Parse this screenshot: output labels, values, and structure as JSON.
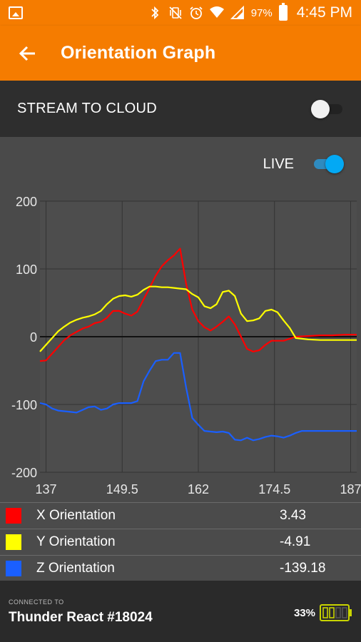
{
  "status_bar": {
    "battery_percent": "97%",
    "time": "4:45 PM",
    "icons": [
      "gallery-icon",
      "bluetooth-icon",
      "vibrate-mute-icon",
      "alarm-icon",
      "wifi-icon",
      "signal-icon",
      "battery-icon"
    ]
  },
  "app_bar": {
    "title": "Orientation Graph",
    "back_icon": "arrow-left-icon"
  },
  "stream": {
    "label": "STREAM TO CLOUD",
    "enabled": false
  },
  "live": {
    "label": "LIVE",
    "enabled": true
  },
  "colors": {
    "accent": "#f57c00",
    "x": "#ff0000",
    "y": "#ffff00",
    "z": "#1a5fff",
    "toggle_on": "#03a9f4"
  },
  "chart_data": {
    "type": "line",
    "title": "",
    "xlabel": "",
    "ylabel": "",
    "xlim": [
      136,
      188
    ],
    "ylim": [
      -200,
      200
    ],
    "x_ticks": [
      "137",
      "149.5",
      "162",
      "174.5",
      "187"
    ],
    "x_tick_values": [
      137,
      149.5,
      162,
      174.5,
      187
    ],
    "y_ticks": [
      "200",
      "100",
      "0",
      "-100",
      "-200"
    ],
    "y_tick_values": [
      200,
      100,
      0,
      -100,
      -200
    ],
    "grid": true,
    "series": [
      {
        "key": "x",
        "color": "#ff0000",
        "points": [
          [
            136,
            -36
          ],
          [
            137,
            -35
          ],
          [
            138,
            -25
          ],
          [
            139,
            -15
          ],
          [
            140,
            -5
          ],
          [
            141,
            2
          ],
          [
            142,
            7
          ],
          [
            143,
            12
          ],
          [
            144,
            15
          ],
          [
            145,
            20
          ],
          [
            146,
            22
          ],
          [
            147,
            28
          ],
          [
            148,
            38
          ],
          [
            149,
            38
          ],
          [
            150,
            34
          ],
          [
            151,
            31
          ],
          [
            152,
            37
          ],
          [
            153,
            55
          ],
          [
            154,
            72
          ],
          [
            155,
            90
          ],
          [
            156,
            104
          ],
          [
            157,
            113
          ],
          [
            158,
            120
          ],
          [
            159,
            130
          ],
          [
            160,
            78
          ],
          [
            161,
            40
          ],
          [
            162,
            23
          ],
          [
            163,
            14
          ],
          [
            164,
            9
          ],
          [
            165,
            15
          ],
          [
            166,
            22
          ],
          [
            167,
            30
          ],
          [
            168,
            18
          ],
          [
            169,
            0
          ],
          [
            170,
            -18
          ],
          [
            171,
            -22
          ],
          [
            172,
            -20
          ],
          [
            173,
            -12
          ],
          [
            174,
            -6
          ],
          [
            175,
            -6
          ],
          [
            176,
            -6
          ],
          [
            177,
            -3
          ],
          [
            178,
            0
          ],
          [
            180,
            1
          ],
          [
            182,
            2
          ],
          [
            184,
            2
          ],
          [
            186,
            3
          ],
          [
            188,
            3
          ]
        ]
      },
      {
        "key": "y",
        "color": "#ffff00",
        "points": [
          [
            136,
            -22
          ],
          [
            137,
            -12
          ],
          [
            138,
            -2
          ],
          [
            139,
            8
          ],
          [
            140,
            15
          ],
          [
            141,
            21
          ],
          [
            142,
            25
          ],
          [
            143,
            28
          ],
          [
            144,
            30
          ],
          [
            145,
            33
          ],
          [
            146,
            38
          ],
          [
            147,
            48
          ],
          [
            148,
            56
          ],
          [
            149,
            60
          ],
          [
            150,
            61
          ],
          [
            151,
            59
          ],
          [
            152,
            62
          ],
          [
            153,
            69
          ],
          [
            154,
            74
          ],
          [
            155,
            74
          ],
          [
            156,
            73
          ],
          [
            157,
            73
          ],
          [
            158,
            72
          ],
          [
            159,
            71
          ],
          [
            160,
            70
          ],
          [
            161,
            63
          ],
          [
            162,
            58
          ],
          [
            163,
            45
          ],
          [
            164,
            42
          ],
          [
            165,
            48
          ],
          [
            166,
            66
          ],
          [
            167,
            68
          ],
          [
            168,
            60
          ],
          [
            169,
            34
          ],
          [
            170,
            23
          ],
          [
            171,
            24
          ],
          [
            172,
            27
          ],
          [
            173,
            38
          ],
          [
            174,
            40
          ],
          [
            175,
            36
          ],
          [
            176,
            24
          ],
          [
            177,
            13
          ],
          [
            178,
            -2
          ],
          [
            180,
            -4
          ],
          [
            182,
            -5
          ],
          [
            184,
            -5
          ],
          [
            186,
            -5
          ],
          [
            188,
            -5
          ]
        ]
      },
      {
        "key": "z",
        "color": "#1a5fff",
        "points": [
          [
            136,
            -98
          ],
          [
            137,
            -100
          ],
          [
            138,
            -106
          ],
          [
            139,
            -109
          ],
          [
            140,
            -110
          ],
          [
            141,
            -111
          ],
          [
            142,
            -112
          ],
          [
            143,
            -108
          ],
          [
            144,
            -104
          ],
          [
            145,
            -103
          ],
          [
            146,
            -108
          ],
          [
            147,
            -106
          ],
          [
            148,
            -100
          ],
          [
            149,
            -98
          ],
          [
            150,
            -98
          ],
          [
            151,
            -98
          ],
          [
            152,
            -95
          ],
          [
            153,
            -66
          ],
          [
            154,
            -50
          ],
          [
            155,
            -36
          ],
          [
            156,
            -34
          ],
          [
            157,
            -34
          ],
          [
            158,
            -24
          ],
          [
            159,
            -24
          ],
          [
            160,
            -75
          ],
          [
            161,
            -120
          ],
          [
            162,
            -130
          ],
          [
            163,
            -139
          ],
          [
            164,
            -140
          ],
          [
            165,
            -141
          ],
          [
            166,
            -140
          ],
          [
            167,
            -142
          ],
          [
            168,
            -152
          ],
          [
            169,
            -153
          ],
          [
            170,
            -149
          ],
          [
            171,
            -153
          ],
          [
            172,
            -151
          ],
          [
            173,
            -148
          ],
          [
            174,
            -146
          ],
          [
            175,
            -147
          ],
          [
            176,
            -149
          ],
          [
            177,
            -146
          ],
          [
            178,
            -142
          ],
          [
            179,
            -139
          ],
          [
            180,
            -139
          ],
          [
            182,
            -139
          ],
          [
            184,
            -139
          ],
          [
            186,
            -139
          ],
          [
            188,
            -139
          ]
        ]
      }
    ]
  },
  "legend": [
    {
      "key": "x",
      "name": "X Orientation",
      "value": "3.43",
      "color": "#ff0000"
    },
    {
      "key": "y",
      "name": "Y Orientation",
      "value": "-4.91",
      "color": "#ffff00"
    },
    {
      "key": "z",
      "name": "Z Orientation",
      "value": "-139.18",
      "color": "#1a5fff"
    }
  ],
  "footer": {
    "connected_label": "CONNECTED TO",
    "device_name": "Thunder React #18024",
    "battery_percent": "33%",
    "battery_fill": 0.33,
    "battery_icon": "device-battery-icon"
  }
}
